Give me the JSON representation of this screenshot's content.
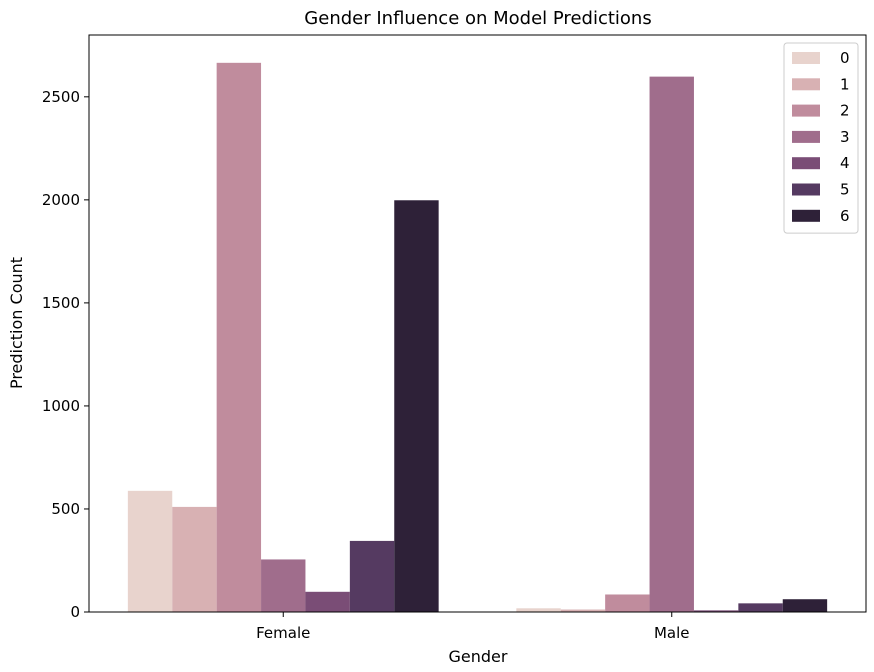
{
  "chart_data": {
    "type": "bar",
    "title": "Gender Influence on Model Predictions",
    "xlabel": "Gender",
    "ylabel": "Prediction Count",
    "categories": [
      "Female",
      "Male"
    ],
    "ylim": [
      0,
      2800
    ],
    "yticks": [
      0,
      500,
      1000,
      1500,
      2000,
      2500
    ],
    "legend_position": "top-right",
    "grid": false,
    "series": [
      {
        "name": "0",
        "color": "#e8d3cd",
        "values": [
          588,
          18
        ]
      },
      {
        "name": "1",
        "color": "#d8b1b3",
        "values": [
          510,
          12
        ]
      },
      {
        "name": "2",
        "color": "#c08c9d",
        "values": [
          2665,
          85
        ]
      },
      {
        "name": "3",
        "color": "#a06d8c",
        "values": [
          255,
          2598
        ]
      },
      {
        "name": "4",
        "color": "#7a4d76",
        "values": [
          98,
          8
        ]
      },
      {
        "name": "5",
        "color": "#553a61",
        "values": [
          345,
          42
        ]
      },
      {
        "name": "6",
        "color": "#2e2138",
        "values": [
          1998,
          62
        ]
      }
    ]
  }
}
